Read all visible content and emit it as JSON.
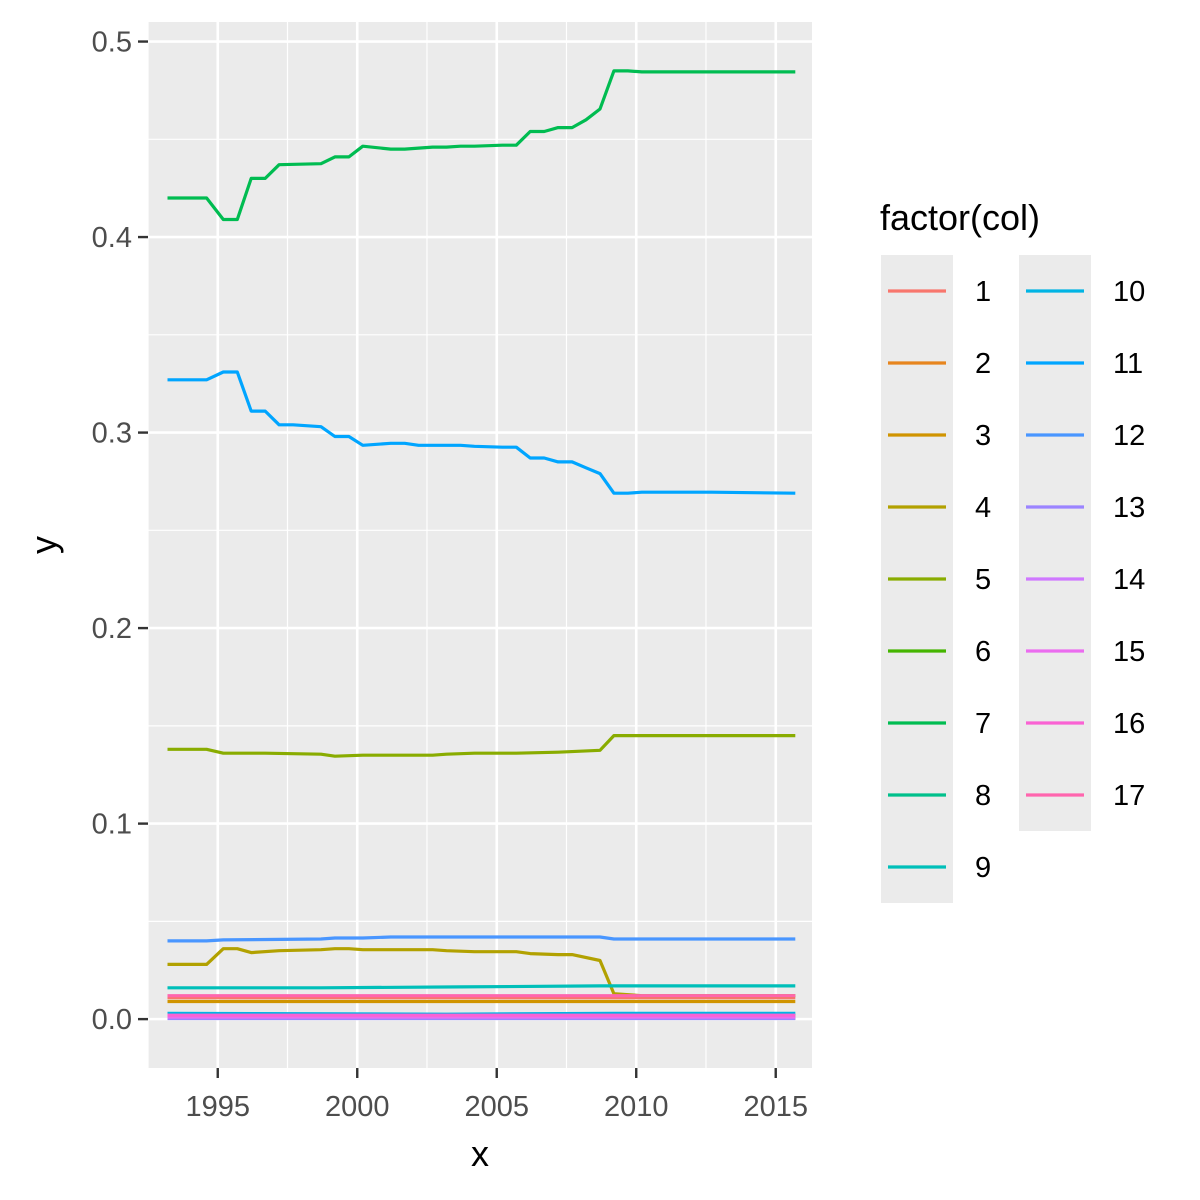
{
  "chart_data": {
    "type": "line",
    "title": "",
    "xlabel": "x",
    "ylabel": "y",
    "xlim": [
      1992.5,
      2016.3
    ],
    "ylim": [
      -0.025,
      0.51
    ],
    "x_ticks": [
      1995,
      2000,
      2005,
      2010,
      2015
    ],
    "x_tick_labels": [
      "1995",
      "2000",
      "2005",
      "2010",
      "2015"
    ],
    "y_ticks": [
      0.0,
      0.1,
      0.2,
      0.3,
      0.4,
      0.5
    ],
    "y_tick_labels": [
      "0.0",
      "0.1",
      "0.2",
      "0.3",
      "0.4",
      "0.5"
    ],
    "grid": true,
    "legend": {
      "title": "factor(col)",
      "placement": "right",
      "columns": 2
    },
    "series": [
      {
        "name": "1",
        "color": "#F8766D",
        "x": [
          1993.2,
          2015.7
        ],
        "y": [
          0.011,
          0.011
        ]
      },
      {
        "name": "2",
        "color": "#E7851E",
        "x": [
          1993.2,
          2015.7
        ],
        "y": [
          0.0015,
          0.0015
        ]
      },
      {
        "name": "3",
        "color": "#D09400",
        "x": [
          1993.2,
          2015.7
        ],
        "y": [
          0.009,
          0.009
        ]
      },
      {
        "name": "4",
        "color": "#B2A100",
        "x": [
          1993.2,
          1994.6,
          1995.2,
          1995.7,
          1996.2,
          1997.2,
          1998.7,
          1999.2,
          1999.7,
          2000.2,
          2001.2,
          2002.7,
          2003.2,
          2004.2,
          2005.7,
          2006.2,
          2007.2,
          2007.7,
          2008.7,
          2009.2,
          2010.2,
          2015.7
        ],
        "y": [
          0.028,
          0.028,
          0.036,
          0.036,
          0.034,
          0.035,
          0.0355,
          0.036,
          0.036,
          0.0355,
          0.0355,
          0.0355,
          0.035,
          0.0345,
          0.0345,
          0.0335,
          0.033,
          0.033,
          0.03,
          0.013,
          0.012,
          0.012
        ]
      },
      {
        "name": "5",
        "color": "#89AC00",
        "x": [
          1993.2,
          1994.6,
          1995.2,
          1996.7,
          1998.7,
          1999.2,
          2000.2,
          2002.7,
          2003.2,
          2004.2,
          2005.7,
          2007.2,
          2008.7,
          2009.2,
          2015.7
        ],
        "y": [
          0.138,
          0.138,
          0.136,
          0.136,
          0.1355,
          0.1345,
          0.135,
          0.135,
          0.1355,
          0.136,
          0.136,
          0.1365,
          0.1375,
          0.145,
          0.145
        ]
      },
      {
        "name": "6",
        "color": "#45B500",
        "x": [
          1993.2,
          2015.7
        ],
        "y": [
          0.0005,
          0.0005
        ]
      },
      {
        "name": "7",
        "color": "#00BC51",
        "x": [
          1993.2,
          1994.6,
          1995.2,
          1995.7,
          1996.2,
          1996.7,
          1997.2,
          1998.7,
          1999.2,
          1999.7,
          2000.2,
          2001.2,
          2001.7,
          2002.2,
          2002.7,
          2003.2,
          2003.7,
          2004.2,
          2005.2,
          2005.7,
          2006.2,
          2006.7,
          2007.2,
          2007.7,
          2008.2,
          2008.7,
          2009.2,
          2009.7,
          2010.2,
          2015.7
        ],
        "y": [
          0.42,
          0.42,
          0.409,
          0.409,
          0.43,
          0.43,
          0.437,
          0.4375,
          0.441,
          0.441,
          0.4465,
          0.445,
          0.445,
          0.4455,
          0.446,
          0.446,
          0.4465,
          0.4465,
          0.447,
          0.447,
          0.454,
          0.454,
          0.456,
          0.456,
          0.46,
          0.4655,
          0.485,
          0.485,
          0.4845,
          0.4845
        ]
      },
      {
        "name": "8",
        "color": "#00C08B",
        "x": [
          1993.2,
          2015.7
        ],
        "y": [
          0.002,
          0.002
        ]
      },
      {
        "name": "9",
        "color": "#00BFB9",
        "x": [
          1993.2,
          1998.7,
          2003.7,
          2008.7,
          2015.7
        ],
        "y": [
          0.016,
          0.016,
          0.0165,
          0.017,
          0.017
        ]
      },
      {
        "name": "10",
        "color": "#00B4E4",
        "x": [
          1993.2,
          2003.2,
          2009.2,
          2015.7
        ],
        "y": [
          0.003,
          0.0025,
          0.003,
          0.003
        ]
      },
      {
        "name": "11",
        "color": "#00A5FF",
        "x": [
          1993.2,
          1994.6,
          1995.2,
          1995.7,
          1996.2,
          1996.7,
          1997.2,
          1997.7,
          1998.7,
          1999.2,
          1999.7,
          2000.2,
          2000.7,
          2001.2,
          2001.7,
          2002.2,
          2002.7,
          2003.7,
          2004.2,
          2005.2,
          2005.7,
          2006.2,
          2006.7,
          2007.2,
          2007.7,
          2008.2,
          2008.7,
          2009.2,
          2009.7,
          2010.2,
          2012.7,
          2015.7
        ],
        "y": [
          0.327,
          0.327,
          0.331,
          0.331,
          0.311,
          0.311,
          0.304,
          0.304,
          0.303,
          0.298,
          0.298,
          0.2935,
          0.294,
          0.2945,
          0.2945,
          0.2935,
          0.2935,
          0.2935,
          0.293,
          0.2925,
          0.2925,
          0.287,
          0.287,
          0.285,
          0.285,
          0.282,
          0.279,
          0.269,
          0.269,
          0.2695,
          0.2695,
          0.269
        ]
      },
      {
        "name": "12",
        "color": "#4996FF",
        "x": [
          1993.2,
          1994.6,
          1995.2,
          1998.7,
          1999.2,
          2000.2,
          2001.2,
          2003.7,
          2008.7,
          2009.2,
          2015.7
        ],
        "y": [
          0.04,
          0.04,
          0.0405,
          0.041,
          0.0415,
          0.0415,
          0.042,
          0.042,
          0.042,
          0.041,
          0.041
        ]
      },
      {
        "name": "13",
        "color": "#9B84FF",
        "x": [
          1993.2,
          2015.7
        ],
        "y": [
          0.0003,
          0.0003
        ]
      },
      {
        "name": "14",
        "color": "#CF78FF",
        "x": [
          1993.2,
          2015.7
        ],
        "y": [
          0.001,
          0.001
        ]
      },
      {
        "name": "15",
        "color": "#EB6CEF",
        "x": [
          1993.2,
          2015.7
        ],
        "y": [
          0.0012,
          0.0012
        ]
      },
      {
        "name": "16",
        "color": "#FA62D3",
        "x": [
          1993.2,
          2015.7
        ],
        "y": [
          0.002,
          0.002
        ]
      },
      {
        "name": "17",
        "color": "#FF65AE",
        "x": [
          1993.2,
          2015.7
        ],
        "y": [
          0.012,
          0.012
        ]
      }
    ]
  }
}
